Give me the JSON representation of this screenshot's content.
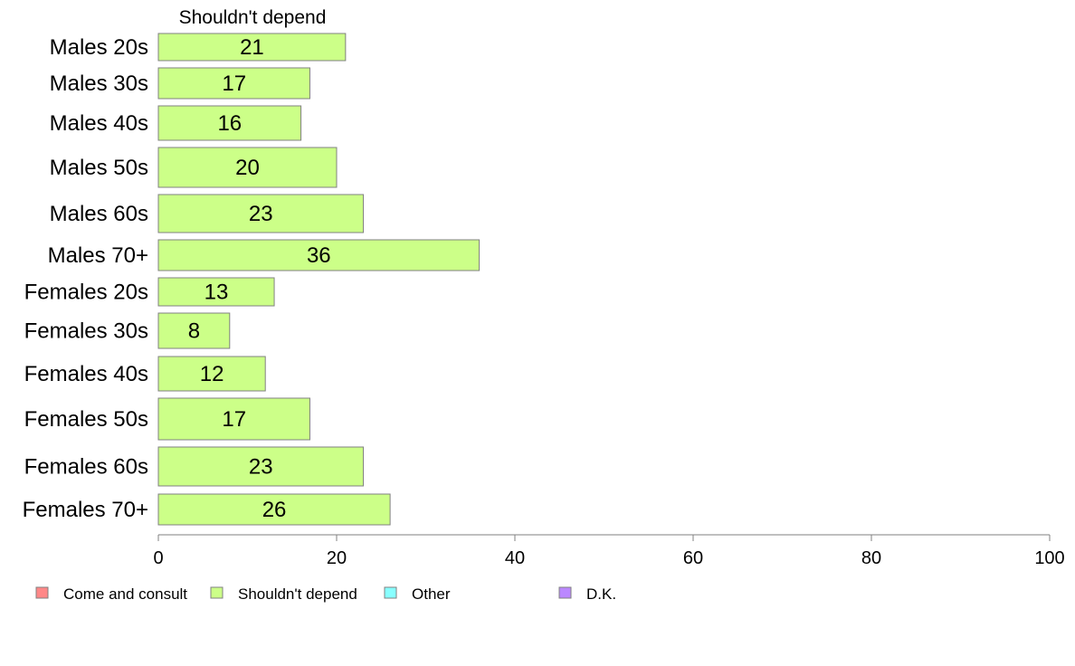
{
  "chart_data": {
    "type": "bar",
    "orientation": "horizontal",
    "title": "Shouldn't depend",
    "categories": [
      "Males 20s",
      "Males 30s",
      "Males 40s",
      "Males 50s",
      "Males 60s",
      "Males 70+",
      "Females 20s",
      "Females 30s",
      "Females 40s",
      "Females 50s",
      "Females 60s",
      "Females 70+"
    ],
    "series": [
      {
        "name": "Shouldn't depend",
        "color": "#ccff88",
        "values": [
          21,
          17,
          16,
          20,
          23,
          36,
          13,
          8,
          12,
          17,
          23,
          26
        ]
      }
    ],
    "xlim": [
      0,
      100
    ],
    "xticks": [
      0,
      20,
      40,
      60,
      80,
      100
    ],
    "grid": false,
    "legend_position": "bottom",
    "legend": [
      {
        "label": "Come and consult",
        "color": "#ff8888"
      },
      {
        "label": "Shouldn't depend",
        "color": "#ccff88"
      },
      {
        "label": "Other",
        "color": "#88ffff"
      },
      {
        "label": "D.K.",
        "color": "#bb88ff"
      }
    ]
  }
}
